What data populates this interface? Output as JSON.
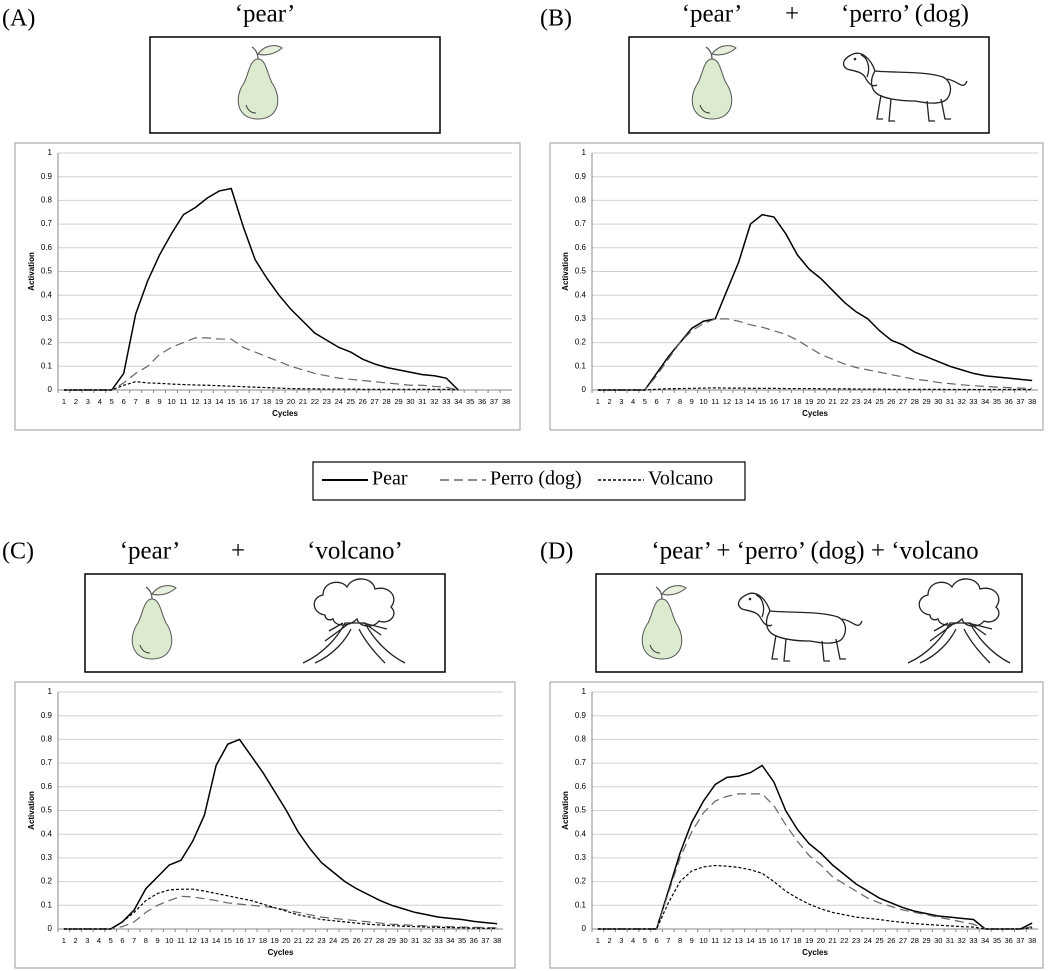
{
  "chart_data": [
    {
      "type": "line",
      "panel": "(A)",
      "title": [
        "‘pear’"
      ],
      "x_label": "Cycles",
      "y_label": "Activation",
      "categories": [
        1,
        2,
        3,
        4,
        5,
        6,
        7,
        8,
        9,
        10,
        11,
        12,
        13,
        14,
        15,
        16,
        17,
        18,
        19,
        20,
        21,
        22,
        23,
        24,
        25,
        26,
        27,
        28,
        29,
        30,
        31,
        32,
        33,
        34,
        35,
        36,
        37,
        38
      ],
      "ylim": [
        0,
        1
      ],
      "yticks": [
        0,
        0.1,
        0.2,
        0.3,
        0.4,
        0.5,
        0.6,
        0.7,
        0.8,
        0.9,
        1
      ],
      "grid": true,
      "series": [
        {
          "style": "solid",
          "color": "#000000",
          "values": [
            0,
            0,
            0,
            0,
            0,
            0.07,
            0.32,
            0.46,
            0.57,
            0.66,
            0.74,
            0.77,
            0.81,
            0.84,
            0.85,
            0.69,
            0.55,
            0.47,
            0.4,
            0.34,
            0.29,
            0.24,
            0.21,
            0.18,
            0.16,
            0.13,
            0.11,
            0.095,
            0.085,
            0.075,
            0.065,
            0.06,
            0.05,
            0,
            null,
            null,
            null,
            null
          ]
        },
        {
          "style": "dashed",
          "color": "#666666",
          "values": [
            0,
            0,
            0,
            0,
            0,
            0.03,
            0.07,
            0.1,
            0.15,
            0.18,
            0.2,
            0.22,
            0.22,
            0.215,
            0.215,
            0.18,
            0.16,
            0.14,
            0.12,
            0.1,
            0.085,
            0.07,
            0.06,
            0.05,
            0.045,
            0.04,
            0.035,
            0.03,
            0.025,
            0.02,
            0.02,
            0.015,
            0.012,
            0,
            null,
            null,
            null,
            null
          ]
        },
        {
          "style": "dotted",
          "color": "#000000",
          "values": [
            0,
            0,
            0,
            0,
            0,
            0.02,
            0.035,
            0.03,
            0.028,
            0.025,
            0.023,
            0.021,
            0.02,
            0.018,
            0.016,
            0.014,
            0.012,
            0.01,
            0.008,
            0.006,
            0.005,
            0.005,
            0.004,
            0.004,
            0.004,
            0.003,
            0.003,
            0.003,
            0.003,
            0.003,
            0.003,
            0.003,
            0.003,
            0,
            null,
            null,
            null,
            null
          ]
        }
      ]
    },
    {
      "type": "line",
      "panel": "(B)",
      "title": [
        "‘pear’",
        "+",
        "‘perro’ (dog)"
      ],
      "x_label": "Cycles",
      "y_label": "Activation",
      "categories": [
        1,
        2,
        3,
        4,
        5,
        6,
        7,
        8,
        9,
        10,
        11,
        12,
        13,
        14,
        15,
        16,
        17,
        18,
        19,
        20,
        21,
        22,
        23,
        24,
        25,
        26,
        27,
        28,
        29,
        30,
        31,
        32,
        33,
        34,
        35,
        36,
        37,
        38
      ],
      "ylim": [
        0,
        1
      ],
      "yticks": [
        0,
        0.1,
        0.2,
        0.3,
        0.4,
        0.5,
        0.6,
        0.7,
        0.8,
        0.9,
        1
      ],
      "grid": true,
      "series": [
        {
          "style": "solid",
          "color": "#000000",
          "values": [
            0,
            0,
            0,
            0,
            0,
            0.07,
            0.14,
            0.2,
            0.26,
            0.29,
            0.3,
            0.42,
            0.54,
            0.7,
            0.74,
            0.73,
            0.66,
            0.57,
            0.51,
            0.47,
            0.42,
            0.37,
            0.33,
            0.3,
            0.25,
            0.21,
            0.19,
            0.16,
            0.14,
            0.12,
            0.1,
            0.085,
            0.07,
            0.06,
            0.055,
            0.05,
            0.045,
            0.04
          ]
        },
        {
          "style": "dashed",
          "color": "#666666",
          "values": [
            0,
            0,
            0,
            0,
            0,
            0.06,
            0.13,
            0.2,
            0.25,
            0.28,
            0.3,
            0.3,
            0.29,
            0.275,
            0.265,
            0.25,
            0.235,
            0.21,
            0.18,
            0.15,
            0.13,
            0.11,
            0.095,
            0.085,
            0.075,
            0.065,
            0.055,
            0.045,
            0.04,
            0.032,
            0.027,
            0.022,
            0.018,
            0.015,
            0.012,
            0.01,
            0.008,
            0.007
          ]
        },
        {
          "style": "dotted",
          "color": "#000000",
          "values": [
            0,
            0,
            0,
            0,
            0,
            0.003,
            0.005,
            0.006,
            0.007,
            0.008,
            0.009,
            0.008,
            0.008,
            0.007,
            0.007,
            0.007,
            0.006,
            0.006,
            0.006,
            0.005,
            0.005,
            0.005,
            0.004,
            0.004,
            0.004,
            0.003,
            0.003,
            0.003,
            0.003,
            0.003,
            0.002,
            0.002,
            0.002,
            0.002,
            0.002,
            0.002,
            0.002,
            0.002
          ]
        }
      ]
    },
    {
      "type": "line",
      "panel": "(C)",
      "title": [
        "‘pear’",
        "+",
        "‘volcano’"
      ],
      "x_label": "Cycles",
      "y_label": "Activation",
      "categories": [
        1,
        2,
        3,
        4,
        5,
        6,
        7,
        8,
        9,
        10,
        11,
        12,
        13,
        14,
        15,
        16,
        17,
        18,
        19,
        20,
        21,
        22,
        23,
        24,
        25,
        26,
        27,
        28,
        29,
        30,
        31,
        32,
        33,
        34,
        35,
        36,
        37,
        38
      ],
      "ylim": [
        0,
        1
      ],
      "yticks": [
        0,
        0.1,
        0.2,
        0.3,
        0.4,
        0.5,
        0.6,
        0.7,
        0.8,
        0.9,
        1
      ],
      "grid": true,
      "series": [
        {
          "style": "solid",
          "color": "#000000",
          "values": [
            0,
            0,
            0,
            0,
            0,
            0.03,
            0.08,
            0.17,
            0.22,
            0.27,
            0.29,
            0.37,
            0.48,
            0.69,
            0.78,
            0.8,
            0.73,
            0.66,
            0.58,
            0.5,
            0.41,
            0.34,
            0.28,
            0.24,
            0.2,
            0.17,
            0.145,
            0.12,
            0.1,
            0.085,
            0.07,
            0.06,
            0.05,
            0.045,
            0.04,
            0.032,
            0.027,
            0.022
          ]
        },
        {
          "style": "dashed",
          "color": "#666666",
          "values": [
            0,
            0,
            0,
            0,
            0,
            0.01,
            0.03,
            0.07,
            0.1,
            0.12,
            0.138,
            0.135,
            0.128,
            0.12,
            0.11,
            0.105,
            0.1,
            0.095,
            0.09,
            0.08,
            0.07,
            0.06,
            0.05,
            0.045,
            0.04,
            0.035,
            0.03,
            0.025,
            0.02,
            0.018,
            0.015,
            0.013,
            0.011,
            0.01,
            0.008,
            0.007,
            0.006,
            0.005
          ]
        },
        {
          "style": "dotted",
          "color": "#000000",
          "values": [
            0,
            0,
            0,
            0,
            0,
            0.03,
            0.07,
            0.12,
            0.15,
            0.165,
            0.168,
            0.168,
            0.16,
            0.15,
            0.14,
            0.13,
            0.12,
            0.105,
            0.09,
            0.075,
            0.06,
            0.05,
            0.04,
            0.035,
            0.03,
            0.025,
            0.02,
            0.017,
            0.014,
            0.012,
            0.01,
            0.008,
            0.007,
            0.006,
            0.005,
            0.004,
            0.003,
            0.003
          ]
        }
      ]
    },
    {
      "type": "line",
      "panel": "(D)",
      "title": [
        "‘pear’ + ‘perro’ (dog) + ‘volcano"
      ],
      "x_label": "Cycles",
      "y_label": "Activation",
      "categories": [
        1,
        2,
        3,
        4,
        5,
        6,
        7,
        8,
        9,
        10,
        11,
        12,
        13,
        14,
        15,
        16,
        17,
        18,
        19,
        20,
        21,
        22,
        23,
        24,
        25,
        26,
        27,
        28,
        29,
        30,
        31,
        32,
        33,
        34,
        35,
        36,
        37,
        38
      ],
      "ylim": [
        0,
        1
      ],
      "yticks": [
        0,
        0.1,
        0.2,
        0.3,
        0.4,
        0.5,
        0.6,
        0.7,
        0.8,
        0.9,
        1
      ],
      "grid": true,
      "series": [
        {
          "style": "solid",
          "color": "#000000",
          "values": [
            0,
            0,
            0,
            0,
            0,
            0,
            0.16,
            0.32,
            0.45,
            0.54,
            0.61,
            0.64,
            0.645,
            0.66,
            0.69,
            0.62,
            0.5,
            0.42,
            0.36,
            0.32,
            0.27,
            0.23,
            0.19,
            0.16,
            0.13,
            0.11,
            0.09,
            0.075,
            0.065,
            0.055,
            0.05,
            0.045,
            0.04,
            0,
            0,
            0,
            0,
            0.025
          ]
        },
        {
          "style": "dashed",
          "color": "#666666",
          "values": [
            0,
            0,
            0,
            0,
            0,
            0,
            0.15,
            0.3,
            0.41,
            0.49,
            0.54,
            0.56,
            0.57,
            0.57,
            0.57,
            0.52,
            0.44,
            0.37,
            0.31,
            0.27,
            0.22,
            0.19,
            0.16,
            0.13,
            0.11,
            0.095,
            0.08,
            0.07,
            0.06,
            0.05,
            0.04,
            0.03,
            0.02,
            0,
            0,
            0,
            0,
            0.01
          ]
        },
        {
          "style": "dotted",
          "color": "#000000",
          "values": [
            0,
            0,
            0,
            0,
            0,
            0,
            0.11,
            0.2,
            0.245,
            0.262,
            0.268,
            0.265,
            0.26,
            0.25,
            0.235,
            0.2,
            0.16,
            0.13,
            0.105,
            0.085,
            0.07,
            0.06,
            0.05,
            0.045,
            0.04,
            0.033,
            0.028,
            0.023,
            0.019,
            0.016,
            0.013,
            0.01,
            0.008,
            0,
            0,
            0,
            0,
            0.005
          ]
        }
      ]
    }
  ],
  "legend": [
    {
      "name": "Pear",
      "style": "solid",
      "color": "#000000"
    },
    {
      "name": "Perro (dog)",
      "style": "dashed",
      "color": "#666666"
    },
    {
      "name": "Volcano",
      "style": "dotted",
      "color": "#000000"
    }
  ]
}
